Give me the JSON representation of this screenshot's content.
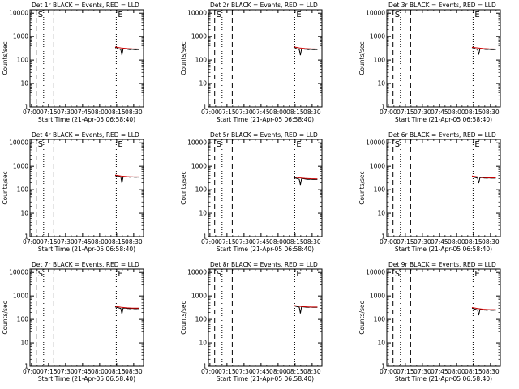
{
  "figure": {
    "colors": {
      "events": "#000000",
      "lld": "#cc0000",
      "axes": "#000000"
    },
    "xlabel": "Start Time (21-Apr-05 06:58:40)",
    "ylabel": "Counts/sec",
    "x_ticks": [
      "07:00",
      "07:15",
      "07:30",
      "07:45",
      "08:00",
      "08:15",
      "08:30"
    ],
    "y_ticks": [
      "1",
      "10",
      "100",
      "1000",
      "10000"
    ],
    "x_range_minutes": [
      0,
      100
    ],
    "y_range": [
      1,
      14000
    ],
    "y_scale": "log",
    "legend": "none"
  },
  "chart_data": [
    {
      "type": "line",
      "title": "Det 1r BLACK = Events, RED = LLD",
      "marker_labels": [
        "S",
        "E"
      ],
      "dashed_x_minutes": [
        5.5,
        21
      ],
      "dotted_x_minutes": [
        12,
        76
      ],
      "series": [
        {
          "name": "Events",
          "x": [
            75,
            76,
            77,
            78,
            79,
            80,
            81,
            82,
            83,
            84,
            85,
            86,
            87,
            88,
            89,
            90,
            91,
            92,
            93,
            94,
            95,
            96
          ],
          "y": [
            330,
            340,
            320,
            300,
            290,
            280,
            160,
            300,
            310,
            300,
            295,
            290,
            285,
            280,
            285,
            290,
            285,
            280,
            275,
            280,
            285,
            280
          ]
        },
        {
          "name": "LLD",
          "x": [
            75,
            80,
            85,
            90,
            96
          ],
          "y": [
            360,
            330,
            310,
            300,
            295
          ]
        }
      ]
    },
    {
      "type": "line",
      "title": "Det 2r BLACK = Events, RED = LLD",
      "marker_labels": [
        "S",
        "E"
      ],
      "dashed_x_minutes": [
        5.5,
        21
      ],
      "dotted_x_minutes": [
        12,
        76
      ],
      "series": [
        {
          "name": "Events",
          "x": [
            75,
            76,
            77,
            78,
            79,
            80,
            81,
            82,
            83,
            84,
            85,
            86,
            87,
            88,
            89,
            90,
            91,
            92,
            93,
            94,
            95,
            96
          ],
          "y": [
            350,
            340,
            320,
            300,
            290,
            280,
            160,
            290,
            300,
            295,
            290,
            290,
            285,
            280,
            285,
            290,
            285,
            280,
            280,
            280,
            285,
            280
          ]
        },
        {
          "name": "LLD",
          "x": [
            75,
            80,
            85,
            90,
            96
          ],
          "y": [
            370,
            330,
            310,
            300,
            295
          ]
        }
      ]
    },
    {
      "type": "line",
      "title": "Det 3r BLACK = Events, RED = LLD",
      "marker_labels": [
        "S",
        "E"
      ],
      "dashed_x_minutes": [
        5.5,
        21
      ],
      "dotted_x_minutes": [
        12,
        76
      ],
      "series": [
        {
          "name": "Events",
          "x": [
            75,
            76,
            77,
            78,
            79,
            80,
            81,
            82,
            83,
            84,
            85,
            86,
            87,
            88,
            89,
            90,
            91,
            92,
            93,
            94,
            95,
            96
          ],
          "y": [
            340,
            330,
            320,
            300,
            290,
            280,
            170,
            300,
            305,
            300,
            295,
            290,
            285,
            285,
            285,
            290,
            285,
            280,
            280,
            280,
            285,
            280
          ]
        },
        {
          "name": "LLD",
          "x": [
            75,
            80,
            85,
            90,
            96
          ],
          "y": [
            350,
            330,
            310,
            300,
            295
          ]
        }
      ]
    },
    {
      "type": "line",
      "title": "Det 4r BLACK = Events, RED = LLD",
      "marker_labels": [
        "S",
        "E"
      ],
      "dashed_x_minutes": [
        5.5,
        21
      ],
      "dotted_x_minutes": [
        12,
        76
      ],
      "series": [
        {
          "name": "Events",
          "x": [
            75,
            76,
            77,
            78,
            79,
            80,
            81,
            82,
            83,
            84,
            85,
            86,
            87,
            88,
            89,
            90,
            91,
            92,
            93,
            94,
            95,
            96
          ],
          "y": [
            400,
            390,
            380,
            370,
            360,
            350,
            190,
            350,
            360,
            355,
            350,
            345,
            345,
            340,
            345,
            350,
            345,
            340,
            340,
            340,
            345,
            340
          ]
        },
        {
          "name": "LLD",
          "x": [
            75,
            80,
            85,
            90,
            96
          ],
          "y": [
            420,
            380,
            360,
            350,
            350
          ]
        }
      ]
    },
    {
      "type": "line",
      "title": "Det 5r BLACK = Events, RED = LLD",
      "marker_labels": [
        "S",
        "E"
      ],
      "dashed_x_minutes": [
        5.5,
        21
      ],
      "dotted_x_minutes": [
        12,
        76
      ],
      "series": [
        {
          "name": "Events",
          "x": [
            75,
            76,
            77,
            78,
            79,
            80,
            81,
            82,
            83,
            84,
            85,
            86,
            87,
            88,
            89,
            90,
            91,
            92,
            93,
            94,
            95,
            96
          ],
          "y": [
            330,
            320,
            310,
            300,
            290,
            280,
            160,
            290,
            300,
            295,
            290,
            285,
            280,
            280,
            280,
            285,
            280,
            275,
            275,
            275,
            280,
            275
          ]
        },
        {
          "name": "LLD",
          "x": [
            75,
            80,
            85,
            90,
            96
          ],
          "y": [
            350,
            320,
            305,
            295,
            290
          ]
        }
      ]
    },
    {
      "type": "line",
      "title": "Det 6r BLACK = Events, RED = LLD",
      "marker_labels": [
        "S",
        "E"
      ],
      "dashed_x_minutes": [
        5.5,
        21
      ],
      "dotted_x_minutes": [
        12,
        76
      ],
      "series": [
        {
          "name": "Events",
          "x": [
            75,
            76,
            77,
            78,
            79,
            80,
            81,
            82,
            83,
            84,
            85,
            86,
            87,
            88,
            89,
            90,
            91,
            92,
            93,
            94,
            95,
            96
          ],
          "y": [
            360,
            350,
            340,
            330,
            320,
            310,
            190,
            320,
            330,
            325,
            320,
            315,
            315,
            310,
            315,
            320,
            315,
            310,
            310,
            310,
            315,
            310
          ]
        },
        {
          "name": "LLD",
          "x": [
            75,
            80,
            85,
            90,
            96
          ],
          "y": [
            380,
            350,
            330,
            320,
            320
          ]
        }
      ]
    },
    {
      "type": "line",
      "title": "Det 7r BLACK = Events, RED = LLD",
      "marker_labels": [
        "S",
        "E"
      ],
      "dashed_x_minutes": [
        5.5,
        21
      ],
      "dotted_x_minutes": [
        12,
        76
      ],
      "series": [
        {
          "name": "Events",
          "x": [
            75,
            76,
            77,
            78,
            79,
            80,
            81,
            82,
            83,
            84,
            85,
            86,
            87,
            88,
            89,
            90,
            91,
            92,
            93,
            94,
            95,
            96
          ],
          "y": [
            340,
            330,
            320,
            310,
            300,
            290,
            170,
            300,
            305,
            300,
            295,
            290,
            290,
            285,
            290,
            295,
            290,
            285,
            285,
            285,
            290,
            285
          ]
        },
        {
          "name": "LLD",
          "x": [
            75,
            80,
            85,
            90,
            96
          ],
          "y": [
            360,
            330,
            310,
            300,
            300
          ]
        }
      ]
    },
    {
      "type": "line",
      "title": "Det 8r BLACK = Events, RED = LLD",
      "marker_labels": [
        "S",
        "E"
      ],
      "dashed_x_minutes": [
        5.5,
        21
      ],
      "dotted_x_minutes": [
        12,
        76
      ],
      "series": [
        {
          "name": "Events",
          "x": [
            75,
            76,
            77,
            78,
            79,
            80,
            81,
            82,
            83,
            84,
            85,
            86,
            87,
            88,
            89,
            90,
            91,
            92,
            93,
            94,
            95,
            96
          ],
          "y": [
            380,
            370,
            360,
            350,
            340,
            330,
            180,
            340,
            345,
            340,
            335,
            330,
            330,
            325,
            330,
            335,
            330,
            325,
            325,
            325,
            330,
            325
          ]
        },
        {
          "name": "LLD",
          "x": [
            75,
            80,
            85,
            90,
            96
          ],
          "y": [
            400,
            360,
            345,
            335,
            335
          ]
        }
      ]
    },
    {
      "type": "line",
      "title": "Det 9r BLACK = Events, RED = LLD",
      "marker_labels": [
        "S",
        "E"
      ],
      "dashed_x_minutes": [
        5.5,
        21
      ],
      "dotted_x_minutes": [
        12,
        76
      ],
      "series": [
        {
          "name": "Events",
          "x": [
            75,
            76,
            77,
            78,
            79,
            80,
            81,
            82,
            83,
            84,
            85,
            86,
            87,
            88,
            89,
            90,
            91,
            92,
            93,
            94,
            95,
            96
          ],
          "y": [
            300,
            290,
            280,
            270,
            260,
            250,
            150,
            260,
            265,
            260,
            255,
            250,
            250,
            245,
            250,
            255,
            250,
            245,
            245,
            245,
            250,
            245
          ]
        },
        {
          "name": "LLD",
          "x": [
            75,
            80,
            85,
            90,
            96
          ],
          "y": [
            320,
            290,
            270,
            260,
            260
          ]
        }
      ]
    }
  ]
}
